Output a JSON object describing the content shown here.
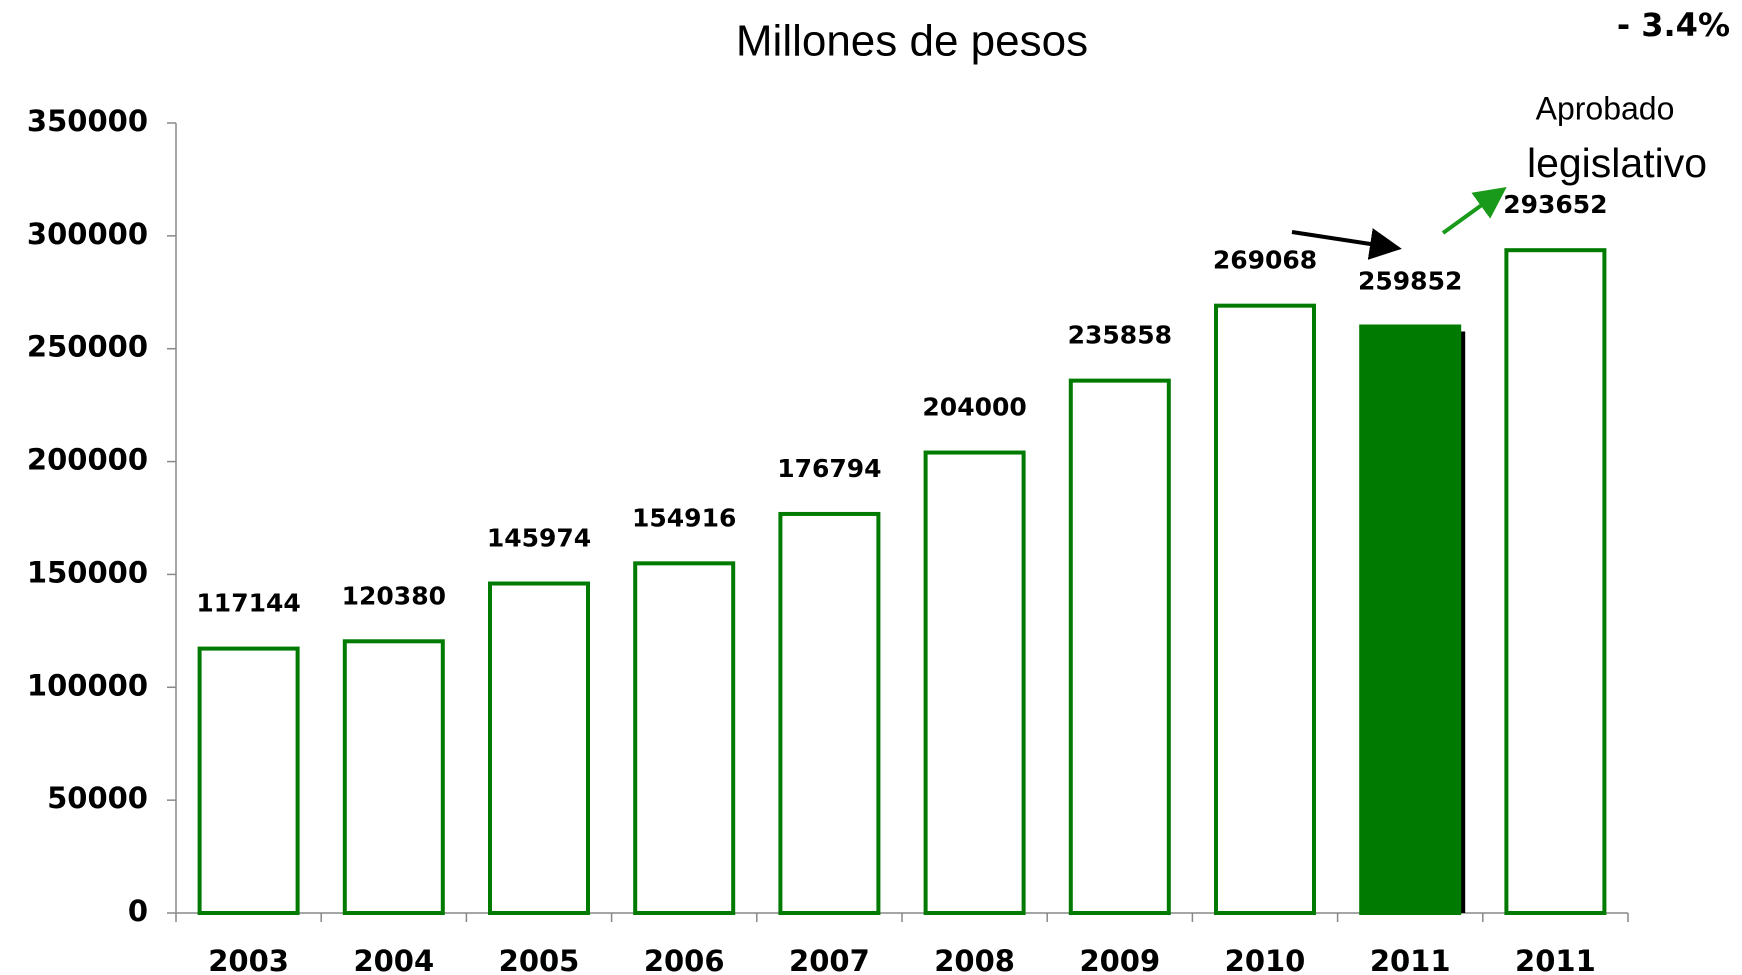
{
  "chart_data": {
    "type": "bar",
    "title": "Millones de pesos",
    "categories": [
      "2003",
      "2004",
      "2005",
      "2006",
      "2007",
      "2008",
      "2009",
      "2010",
      "2011",
      "2011"
    ],
    "values": [
      117144,
      120380,
      145974,
      154916,
      176794,
      204000,
      235858,
      269068,
      259852,
      293652
    ],
    "color": "#007a00",
    "bar_fills": [
      "#ffffff",
      "#ffffff",
      "#ffffff",
      "#ffffff",
      "#ffffff",
      "#ffffff",
      "#ffffff",
      "#ffffff",
      "#007a00",
      "#ffffff"
    ],
    "ylim": [
      0,
      350000
    ],
    "yticks": [
      0,
      50000,
      100000,
      150000,
      200000,
      250000,
      300000,
      350000
    ],
    "grid": false,
    "annotations": [
      "- 3.4%",
      "Aprobado",
      "legislativo"
    ]
  }
}
